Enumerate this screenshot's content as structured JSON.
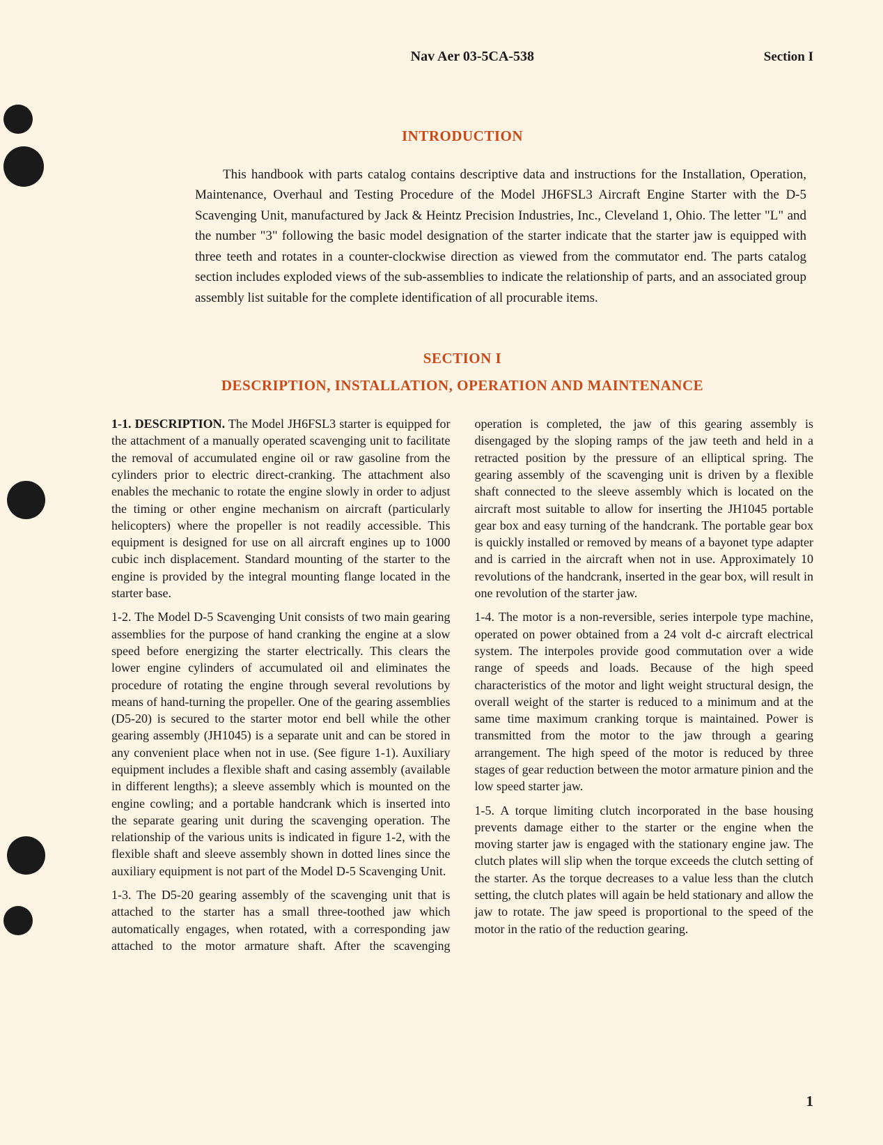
{
  "header": {
    "doc_number": "Nav Aer 03-5CA-538",
    "section_label": "Section I"
  },
  "intro": {
    "heading": "INTRODUCTION",
    "text": "This handbook with parts catalog contains descriptive data and instructions for the Installation, Operation, Maintenance, Overhaul and Testing Procedure of the Model JH6FSL3 Aircraft Engine Starter with the D-5 Scavenging Unit, manufactured by Jack & Heintz Precision Industries, Inc., Cleveland 1, Ohio. The letter \"L\" and the number \"3\" following the basic model designation of the starter indicate that the starter jaw is equipped with three teeth and rotates in a counter-clockwise direction as viewed from the commutator end. The parts catalog section includes exploded views of the sub-assemblies to indicate the relationship of parts, and an associated group assembly list suitable for the complete identification of all procurable items."
  },
  "section": {
    "heading": "SECTION I",
    "subheading": "DESCRIPTION, INSTALLATION, OPERATION AND MAINTENANCE"
  },
  "paragraphs": {
    "p1": {
      "label": "1-1.  DESCRIPTION.",
      "text": " The Model JH6FSL3 starter is equipped for the attachment of a manually operated scavenging unit to facilitate the removal of accumulated engine oil or raw gasoline from the cylinders prior to electric direct-cranking. The attachment also enables the mechanic to rotate the engine slowly in order to adjust the timing or other engine mechanism on aircraft (particularly helicopters) where the propeller is not readily accessible. This equipment is designed for use on all aircraft engines up to 1000 cubic inch displacement. Standard mounting of the starter to the engine is provided by the integral mounting flange located in the starter base."
    },
    "p2": {
      "label": "1-2.",
      "text": "  The Model D-5 Scavenging Unit consists of two main gearing assemblies for the purpose of hand cranking the engine at a slow speed before energizing the starter electrically. This clears the lower engine cylinders of accumulated oil and eliminates the procedure of rotating the engine through several revolutions by means of hand-turning the propeller. One of the gearing assemblies (D5-20) is secured to the starter motor end bell while the other gearing assembly (JH1045) is a separate unit and can be stored in any convenient place when not in use. (See figure 1-1). Auxiliary equipment includes a flexible shaft and casing assembly (available in different lengths); a sleeve assembly which is mounted on the engine cowling; and a portable handcrank which is inserted into the separate gearing unit during the scavenging operation. The relationship of the various units is indicated in figure 1-2, with the flexible shaft and sleeve assembly shown in dotted lines since the auxiliary equipment is not part of the Model D-5 Scavenging Unit."
    },
    "p3": {
      "label": "1-3.",
      "text": "  The D5-20 gearing assembly of the scavenging unit that is attached to the starter has a small three-toothed jaw which automatically engages, when rotated, with a corresponding jaw attached to the motor armature shaft. After the scavenging operation is completed, the jaw of this gearing assembly is disengaged by the sloping ramps of the jaw teeth and held in a retracted position by the pressure of an elliptical spring. The gearing assembly of the scavenging unit is driven by a flexible shaft connected to the sleeve assembly which is located on the aircraft most suitable to allow for inserting the JH1045 portable gear box and easy turning of the handcrank. The portable gear box is quickly installed or removed by means of a bayonet type adapter and is carried in the aircraft when not in use. Approximately 10 revolutions of the handcrank, inserted in the gear box, will result in one revolution of the starter jaw."
    },
    "p4": {
      "label": "1-4.",
      "text": "  The motor is a non-reversible, series interpole type machine, operated on power obtained from a 24 volt d-c aircraft electrical system. The interpoles provide good commutation over a wide range of speeds and loads. Because of the high speed characteristics of the motor and light weight structural design, the overall weight of the starter is reduced to a minimum and at the same time maximum cranking torque is maintained. Power is transmitted from the motor to the jaw through a gearing arrangement. The high speed of the motor is reduced by three stages of gear reduction between the motor armature pinion and the low speed starter jaw."
    },
    "p5": {
      "label": "1-5.",
      "text": "  A torque limiting clutch incorporated in the base housing prevents damage either to the starter or the engine when the moving starter jaw is engaged with the stationary engine jaw. The clutch plates will slip when the torque exceeds the clutch setting of the starter. As the torque decreases to a value less than the clutch setting, the clutch plates will again be held stationary and allow the jaw to rotate. The jaw speed is proportional to the speed of the motor in the ratio of the reduction gearing."
    }
  },
  "page_number": "1"
}
